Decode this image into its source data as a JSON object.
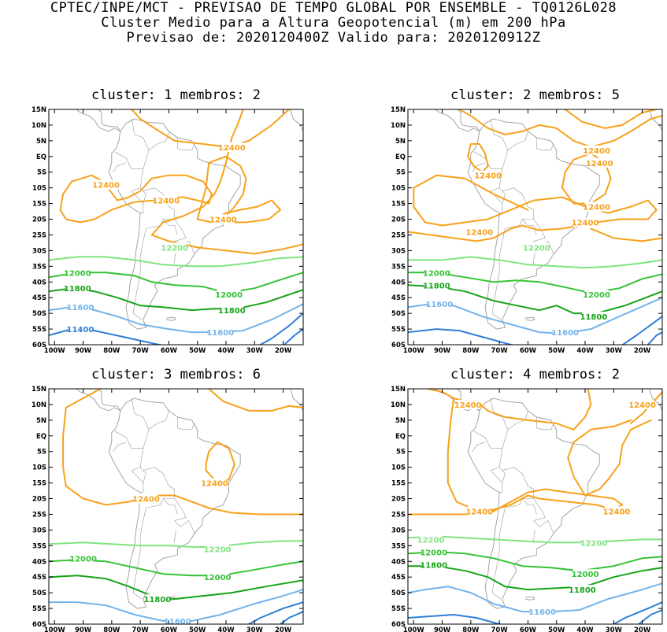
{
  "header": {
    "line1": "CPTEC/INPE/MCT - PREVISAO DE TEMPO GLOBAL POR ENSEMBLE - TQ0126L028",
    "line2": "Cluster Medio para a Altura Geopotencial (m) em 200 hPa",
    "line3": "Previsao de: 2020120400Z   Valido para: 2020120912Z"
  },
  "axes": {
    "lat_ticks": [
      "15N",
      "10N",
      "5N",
      "EQ",
      "5S",
      "10S",
      "15S",
      "20S",
      "25S",
      "30S",
      "35S",
      "40S",
      "45S",
      "50S",
      "55S",
      "60S"
    ],
    "lon_ticks": [
      "100W",
      "90W",
      "80W",
      "70W",
      "60W",
      "50W",
      "40W",
      "30W",
      "20W"
    ]
  },
  "colors": {
    "c12400": "#f7a11a",
    "c12200": "#7fe57f",
    "c12000": "#34c234",
    "c11800": "#17a317",
    "c11600": "#72b4ec",
    "c11400": "#2f7fd6",
    "coast": "#9a9a9a"
  },
  "panels": [
    {
      "title": "cluster: 1   membros: 2",
      "contour_labels": [
        {
          "text": "12400",
          "lon": -38,
          "lat": 3
        },
        {
          "text": "12400",
          "lon": -82,
          "lat": -9
        },
        {
          "text": "12400",
          "lon": -61,
          "lat": -14
        },
        {
          "text": "12400",
          "lon": -41,
          "lat": -20
        },
        {
          "text": "12200",
          "lon": -58,
          "lat": -29
        },
        {
          "text": "12000",
          "lon": -92,
          "lat": -37
        },
        {
          "text": "11800",
          "lon": -92,
          "lat": -42
        },
        {
          "text": "12000",
          "lon": -39,
          "lat": -44
        },
        {
          "text": "11800",
          "lon": -38,
          "lat": -49
        },
        {
          "text": "11600",
          "lon": -91,
          "lat": -48
        },
        {
          "text": "11600",
          "lon": -42,
          "lat": -56
        },
        {
          "text": "11400",
          "lon": -91,
          "lat": -55
        }
      ]
    },
    {
      "title": "cluster: 2   membros: 5",
      "contour_labels": [
        {
          "text": "12400",
          "lon": -36,
          "lat": 2
        },
        {
          "text": "12400",
          "lon": -35,
          "lat": -2
        },
        {
          "text": "12400",
          "lon": -74,
          "lat": -6
        },
        {
          "text": "12400",
          "lon": -36,
          "lat": -16
        },
        {
          "text": "12400",
          "lon": -40,
          "lat": -21
        },
        {
          "text": "12400",
          "lon": -77,
          "lat": -24
        },
        {
          "text": "12200",
          "lon": -57,
          "lat": -29
        },
        {
          "text": "12000",
          "lon": -92,
          "lat": -37
        },
        {
          "text": "11800",
          "lon": -92,
          "lat": -41
        },
        {
          "text": "12000",
          "lon": -36,
          "lat": -44
        },
        {
          "text": "11800",
          "lon": -37,
          "lat": -51
        },
        {
          "text": "11600",
          "lon": -91,
          "lat": -47
        },
        {
          "text": "11600",
          "lon": -47,
          "lat": -56
        }
      ]
    },
    {
      "title": "cluster: 3   membros: 6",
      "contour_labels": [
        {
          "text": "12400",
          "lon": -44,
          "lat": -15
        },
        {
          "text": "12400",
          "lon": -68,
          "lat": -20
        },
        {
          "text": "12200",
          "lon": -43,
          "lat": -36
        },
        {
          "text": "12000",
          "lon": -90,
          "lat": -39
        },
        {
          "text": "12000",
          "lon": -43,
          "lat": -45
        },
        {
          "text": "11800",
          "lon": -64,
          "lat": -52
        },
        {
          "text": "11600",
          "lon": -57,
          "lat": -59
        }
      ]
    },
    {
      "title": "cluster: 4   membros: 2",
      "contour_labels": [
        {
          "text": "12400",
          "lon": -81,
          "lat": 10
        },
        {
          "text": "12400",
          "lon": -20,
          "lat": 10
        },
        {
          "text": "12400",
          "lon": -77,
          "lat": -24
        },
        {
          "text": "12400",
          "lon": -29,
          "lat": -24
        },
        {
          "text": "12200",
          "lon": -94,
          "lat": -33
        },
        {
          "text": "12000",
          "lon": -93,
          "lat": -37
        },
        {
          "text": "11800",
          "lon": -93,
          "lat": -41
        },
        {
          "text": "12200",
          "lon": -37,
          "lat": -34
        },
        {
          "text": "12000",
          "lon": -40,
          "lat": -44
        },
        {
          "text": "11800",
          "lon": -41,
          "lat": -49
        },
        {
          "text": "11600",
          "lon": -55,
          "lat": -56
        }
      ]
    }
  ]
}
